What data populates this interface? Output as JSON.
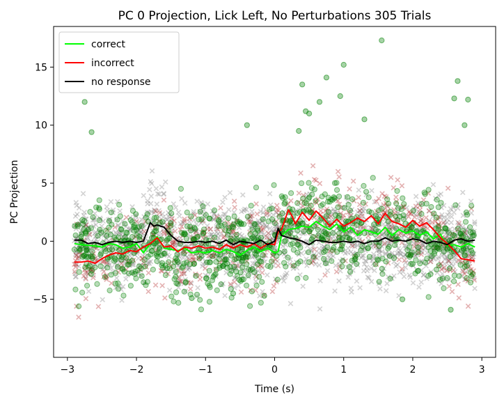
{
  "chart_data": {
    "type": "line",
    "title": "PC 0 Projection, Lick Left, No Perturbations 305 Trials",
    "xlabel": "Time (s)",
    "ylabel": "PC Projection",
    "xlim": [
      -3.2,
      3.2
    ],
    "ylim": [
      -10,
      18.5
    ],
    "xticks": [
      -3,
      -2,
      -1,
      0,
      1,
      2,
      3
    ],
    "xtick_labels": [
      "−3",
      "−2",
      "−1",
      "0",
      "1",
      "2",
      "3"
    ],
    "yticks": [
      -5,
      0,
      5,
      10,
      15
    ],
    "ytick_labels": [
      "−5",
      "0",
      "5",
      "10",
      "15"
    ],
    "grid": false,
    "legend_position": "top-left",
    "series": [
      {
        "name": "correct",
        "color": "#00ff00",
        "x": [
          -2.9,
          -2.8,
          -2.6,
          -2.5,
          -2.4,
          -2.3,
          -2.2,
          -2.1,
          -2.0,
          -1.9,
          -1.8,
          -1.7,
          -1.6,
          -1.5,
          -1.4,
          -1.3,
          -1.2,
          -1.1,
          -1.0,
          -0.9,
          -0.8,
          -0.7,
          -0.6,
          -0.5,
          -0.4,
          -0.3,
          -0.2,
          -0.1,
          0.0,
          0.05,
          0.1,
          0.2,
          0.3,
          0.4,
          0.5,
          0.6,
          0.7,
          0.8,
          0.9,
          1.0,
          1.1,
          1.2,
          1.3,
          1.4,
          1.5,
          1.6,
          1.7,
          1.8,
          1.9,
          2.0,
          2.1,
          2.2,
          2.3,
          2.4,
          2.5,
          2.6,
          2.7,
          2.8,
          2.9
        ],
        "y": [
          -0.2,
          -0.3,
          -0.4,
          -0.5,
          -0.2,
          -0.3,
          -0.6,
          -0.5,
          -0.2,
          -1.0,
          -0.2,
          0.4,
          -0.6,
          -0.7,
          -0.8,
          -0.6,
          -1.0,
          -0.9,
          -1.0,
          -0.8,
          -1.0,
          -0.7,
          -0.9,
          -1.2,
          -0.8,
          -0.5,
          -0.9,
          -0.6,
          -1.0,
          -0.9,
          0.5,
          1.0,
          1.1,
          1.3,
          1.2,
          1.7,
          1.3,
          1.0,
          1.5,
          0.8,
          1.2,
          0.5,
          1.0,
          0.8,
          0.6,
          1.2,
          0.5,
          1.0,
          0.7,
          0.9,
          0.5,
          0.8,
          0.2,
          0.6,
          -0.4,
          -0.3,
          -0.5,
          -0.2,
          -0.5
        ]
      },
      {
        "name": "incorrect",
        "color": "#ff0000",
        "x": [
          -2.9,
          -2.8,
          -2.7,
          -2.6,
          -2.5,
          -2.4,
          -2.3,
          -2.2,
          -2.1,
          -2.0,
          -1.9,
          -1.8,
          -1.7,
          -1.6,
          -1.5,
          -1.4,
          -1.3,
          -1.2,
          -1.1,
          -1.0,
          -0.9,
          -0.8,
          -0.7,
          -0.6,
          -0.5,
          -0.4,
          -0.3,
          -0.2,
          -0.1,
          0.0,
          0.05,
          0.1,
          0.2,
          0.25,
          0.3,
          0.4,
          0.5,
          0.6,
          0.7,
          0.8,
          0.9,
          1.0,
          1.1,
          1.2,
          1.3,
          1.4,
          1.5,
          1.6,
          1.7,
          1.8,
          1.9,
          2.0,
          2.1,
          2.2,
          2.3,
          2.4,
          2.5,
          2.6,
          2.7,
          2.8,
          2.9
        ],
        "y": [
          -1.8,
          -1.8,
          -1.7,
          -1.9,
          -1.5,
          -1.2,
          -1.0,
          -1.1,
          -0.8,
          -0.9,
          -0.5,
          -0.2,
          0.3,
          -0.5,
          -0.4,
          -0.9,
          -0.5,
          -0.6,
          -0.4,
          -0.6,
          -0.5,
          -0.7,
          -0.3,
          -0.6,
          -0.3,
          -0.5,
          -0.2,
          -0.6,
          -0.2,
          -0.3,
          0.8,
          1.0,
          2.7,
          2.2,
          1.5,
          2.5,
          1.8,
          2.6,
          2.0,
          1.3,
          1.9,
          1.3,
          1.6,
          2.0,
          1.7,
          2.2,
          1.5,
          2.4,
          1.7,
          1.5,
          1.2,
          1.8,
          1.3,
          1.6,
          1.0,
          0.3,
          -0.2,
          -0.8,
          -1.5,
          -1.6,
          -1.7
        ]
      },
      {
        "name": "no response",
        "color": "#000000",
        "x": [
          -2.9,
          -2.8,
          -2.7,
          -2.6,
          -2.5,
          -2.4,
          -2.3,
          -2.2,
          -2.1,
          -2.0,
          -1.9,
          -1.8,
          -1.75,
          -1.7,
          -1.6,
          -1.5,
          -1.4,
          -1.3,
          -1.2,
          -1.1,
          -1.0,
          -0.9,
          -0.8,
          -0.7,
          -0.6,
          -0.5,
          -0.4,
          -0.3,
          -0.2,
          -0.1,
          0.0,
          0.05,
          0.1,
          0.2,
          0.3,
          0.4,
          0.5,
          0.6,
          0.7,
          0.8,
          0.9,
          1.0,
          1.1,
          1.2,
          1.3,
          1.4,
          1.5,
          1.6,
          1.7,
          1.8,
          1.9,
          2.0,
          2.1,
          2.2,
          2.3,
          2.4,
          2.5,
          2.6,
          2.7,
          2.8,
          2.9
        ],
        "y": [
          0.1,
          0.1,
          -0.2,
          -0.1,
          -0.3,
          -0.1,
          0.0,
          -0.1,
          0.0,
          -0.1,
          0.0,
          1.6,
          1.3,
          1.4,
          1.2,
          0.5,
          0.0,
          -0.1,
          -0.1,
          0.0,
          -0.1,
          0.0,
          -0.2,
          0.1,
          -0.3,
          0.0,
          -0.1,
          -0.2,
          0.1,
          -0.3,
          0.0,
          1.1,
          0.5,
          0.3,
          0.2,
          0.0,
          -0.3,
          0.1,
          0.0,
          -0.1,
          -0.1,
          0.0,
          -0.1,
          0.0,
          -0.2,
          0.0,
          0.0,
          0.3,
          0.0,
          0.1,
          0.0,
          0.2,
          0.1,
          -0.2,
          0.0,
          -0.1,
          -0.3,
          0.1,
          0.2,
          0.0,
          0.1
        ]
      }
    ],
    "scatter_background": {
      "description_colors": {
        "no_response": "#808080",
        "incorrect": "#b22222",
        "correct": "#008000"
      },
      "correct_outliers": [
        {
          "x": 1.55,
          "y": 17.3
        },
        {
          "x": 1.0,
          "y": 15.2
        },
        {
          "x": 0.75,
          "y": 14.1
        },
        {
          "x": 2.65,
          "y": 13.8
        },
        {
          "x": 0.4,
          "y": 13.5
        },
        {
          "x": 2.8,
          "y": 12.2
        },
        {
          "x": 0.65,
          "y": 12.0
        },
        {
          "x": 0.95,
          "y": 12.5
        },
        {
          "x": -2.75,
          "y": 12.0
        },
        {
          "x": 2.6,
          "y": 12.3
        },
        {
          "x": 0.45,
          "y": 11.2
        },
        {
          "x": 0.5,
          "y": 11.0
        },
        {
          "x": 1.3,
          "y": 10.5
        },
        {
          "x": -0.4,
          "y": 10.0
        },
        {
          "x": 0.35,
          "y": 9.5
        },
        {
          "x": -2.65,
          "y": 9.4
        },
        {
          "x": 2.75,
          "y": 10.0
        },
        {
          "x": -1.2,
          "y": -4.9
        },
        {
          "x": -0.6,
          "y": -4.5
        },
        {
          "x": -0.15,
          "y": -4.7
        },
        {
          "x": 1.85,
          "y": -5.0
        },
        {
          "x": 2.55,
          "y": -5.9
        }
      ]
    }
  }
}
